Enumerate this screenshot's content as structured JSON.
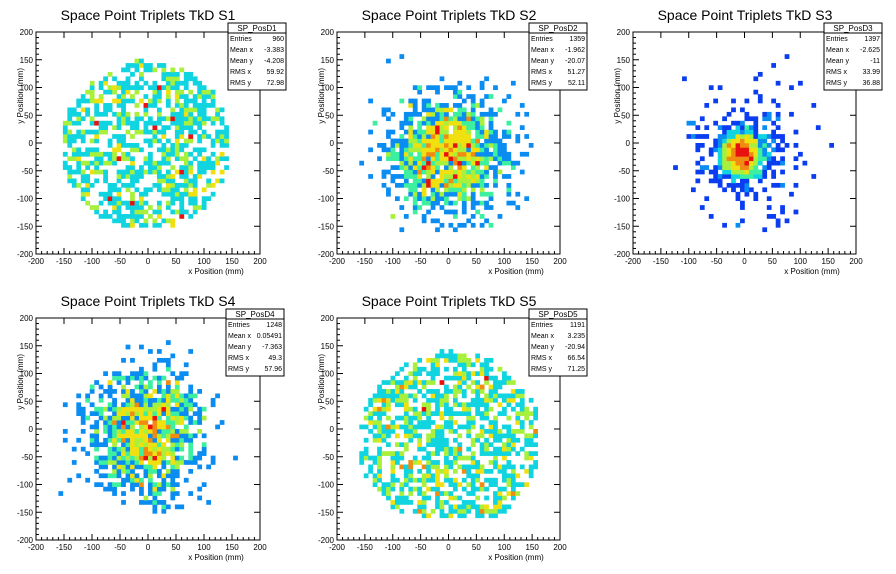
{
  "chart_data": [
    {
      "type": "heatmap",
      "title": "Space Point Triplets TkD S1",
      "xlabel": "x Position (mm)",
      "ylabel": "y Position (mm)",
      "xlim": [
        -200,
        200
      ],
      "ylim": [
        -200,
        200
      ],
      "xticks": [
        -200,
        -150,
        -100,
        -50,
        0,
        50,
        100,
        150,
        200
      ],
      "yticks": [
        -200,
        -150,
        -100,
        -50,
        0,
        50,
        100,
        150,
        200
      ],
      "stats": {
        "name": "SP_PosD1",
        "rows": [
          {
            "label": "Entries",
            "value": "960"
          },
          {
            "label": "Mean x",
            "value": "-3.383"
          },
          {
            "label": "Mean y",
            "value": "-4.208"
          },
          {
            "label": "RMS x",
            "value": "59.92"
          },
          {
            "label": "RMS y",
            "value": "72.98"
          }
        ]
      },
      "entries": 960,
      "mean_x": -3.383,
      "mean_y": -4.208,
      "rms_x": 59.92,
      "rms_y": 72.98,
      "peak_x": -10,
      "peak_y": -10,
      "shape": "ring"
    },
    {
      "type": "heatmap",
      "title": "Space Point Triplets TkD S2",
      "xlabel": "x Position (mm)",
      "ylabel": "y Position (mm)",
      "xlim": [
        -200,
        200
      ],
      "ylim": [
        -200,
        200
      ],
      "xticks": [
        -200,
        -150,
        -100,
        -50,
        0,
        50,
        100,
        150,
        200
      ],
      "yticks": [
        -200,
        -150,
        -100,
        -50,
        0,
        50,
        100,
        150,
        200
      ],
      "stats": {
        "name": "SP_PosD2",
        "rows": [
          {
            "label": "Entries",
            "value": "1359"
          },
          {
            "label": "Mean x",
            "value": "-1.962"
          },
          {
            "label": "Mean y",
            "value": "-20.07"
          },
          {
            "label": "RMS x",
            "value": "51.27"
          },
          {
            "label": "RMS y",
            "value": "52.11"
          }
        ]
      },
      "entries": 1359,
      "mean_x": -1.962,
      "mean_y": -20.07,
      "rms_x": 51.27,
      "rms_y": 52.11,
      "peak_x": 0,
      "peak_y": -50,
      "shape": "gauss"
    },
    {
      "type": "heatmap",
      "title": "Space Point Triplets TkD S3",
      "xlabel": "x Position (mm)",
      "ylabel": "y Position (mm)",
      "xlim": [
        -200,
        200
      ],
      "ylim": [
        -200,
        200
      ],
      "xticks": [
        -200,
        -150,
        -100,
        -50,
        0,
        50,
        100,
        150,
        200
      ],
      "yticks": [
        -200,
        -150,
        -100,
        -50,
        0,
        50,
        100,
        150,
        200
      ],
      "stats": {
        "name": "SP_PosD3",
        "rows": [
          {
            "label": "Entries",
            "value": "1397"
          },
          {
            "label": "Mean x",
            "value": "-2.625"
          },
          {
            "label": "Mean y",
            "value": "-11"
          },
          {
            "label": "RMS x",
            "value": "33.99"
          },
          {
            "label": "RMS y",
            "value": "36.88"
          }
        ]
      },
      "entries": 1397,
      "mean_x": -2.625,
      "mean_y": -11,
      "rms_x": 33.99,
      "rms_y": 36.88,
      "peak_x": -5,
      "peak_y": -20,
      "shape": "core"
    },
    {
      "type": "heatmap",
      "title": "Space Point Triplets TkD S4",
      "xlabel": "x Position (mm)",
      "ylabel": "y Position (mm)",
      "xlim": [
        -200,
        200
      ],
      "ylim": [
        -200,
        200
      ],
      "xticks": [
        -200,
        -150,
        -100,
        -50,
        0,
        50,
        100,
        150,
        200
      ],
      "yticks": [
        -200,
        -150,
        -100,
        -50,
        0,
        50,
        100,
        150,
        200
      ],
      "stats": {
        "name": "SP_PosD4",
        "rows": [
          {
            "label": "Entries",
            "value": "1248"
          },
          {
            "label": "Mean x",
            "value": "0.05491"
          },
          {
            "label": "Mean y",
            "value": "-7.363"
          },
          {
            "label": "RMS x",
            "value": "49.3"
          },
          {
            "label": "RMS y",
            "value": "57.96"
          }
        ]
      },
      "entries": 1248,
      "mean_x": 0.05491,
      "mean_y": -7.363,
      "rms_x": 49.3,
      "rms_y": 57.96,
      "peak_x": 0,
      "peak_y": -10,
      "shape": "gauss"
    },
    {
      "type": "heatmap",
      "title": "Space Point Triplets TkD S5",
      "xlabel": "x Position (mm)",
      "ylabel": "y Position (mm)",
      "xlim": [
        -200,
        200
      ],
      "ylim": [
        -200,
        200
      ],
      "xticks": [
        -200,
        -150,
        -100,
        -50,
        0,
        50,
        100,
        150,
        200
      ],
      "yticks": [
        -200,
        -150,
        -100,
        -50,
        0,
        50,
        100,
        150,
        200
      ],
      "stats": {
        "name": "SP_PosD5",
        "rows": [
          {
            "label": "Entries",
            "value": "1191"
          },
          {
            "label": "Mean x",
            "value": "3.235"
          },
          {
            "label": "Mean y",
            "value": "-20.94"
          },
          {
            "label": "RMS x",
            "value": "66.54"
          },
          {
            "label": "RMS y",
            "value": "71.25"
          }
        ]
      },
      "entries": 1191,
      "mean_x": 3.235,
      "mean_y": -20.94,
      "rms_x": 66.54,
      "rms_y": 71.25,
      "peak_x": -20,
      "peak_y": -20,
      "shape": "flat"
    }
  ],
  "palette": [
    "#3c00e6",
    "#0a3cf0",
    "#0a8cf0",
    "#10d4e0",
    "#3cf0a0",
    "#a8f03c",
    "#f0e010",
    "#f08a10",
    "#e81010"
  ]
}
